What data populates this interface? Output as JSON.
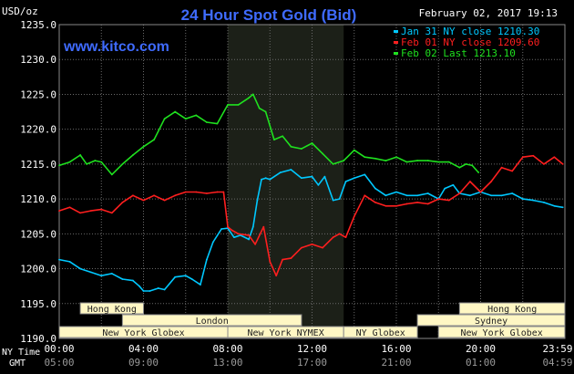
{
  "header": {
    "unit": "USD/oz",
    "title": "24 Hour Spot Gold (Bid)",
    "timestamp": "February 02, 2017 19:13",
    "website": "www.kitco.com"
  },
  "axis_labels": {
    "ny_time": "NY Time",
    "gmt": "GMT"
  },
  "colors": {
    "background": "#000000",
    "grid": "#6a6a6a",
    "axis_text": "#ffffff",
    "title": "#3f6bff",
    "session_fill": "#fff7c4",
    "session_border": "#8a8a8a",
    "shade": "#1c2018"
  },
  "sessions": [
    {
      "label": "Hong Kong",
      "start": 1.0,
      "end": 4.0,
      "row": 1
    },
    {
      "label": "Hong Kong",
      "start": 19.0,
      "end": 24.0,
      "row": 1
    },
    {
      "label": "London",
      "start": 3.0,
      "end": 11.5,
      "row": 2
    },
    {
      "label": "Sydney",
      "start": 17.0,
      "end": 24.0,
      "row": 2
    },
    {
      "label": "New York Globex",
      "start": 0.0,
      "end": 8.0,
      "row": 3
    },
    {
      "label": "New York NYMEX",
      "start": 8.0,
      "end": 13.5,
      "row": 3
    },
    {
      "label": "NY Globex",
      "start": 13.5,
      "end": 17.0,
      "row": 3
    },
    {
      "label": "New York Globex",
      "start": 18.0,
      "end": 24.0,
      "row": 3
    }
  ],
  "chart_data": {
    "type": "line",
    "ylabel": "USD/oz",
    "ylim": [
      1190,
      1235
    ],
    "yticks": [
      "1190.0",
      "1195.0",
      "1200.0",
      "1205.0",
      "1210.0",
      "1215.0",
      "1220.0",
      "1225.0",
      "1230.0",
      "1235.0"
    ],
    "xlim": [
      0,
      24
    ],
    "xticks_ny": [
      "00:00",
      "04:00",
      "08:00",
      "12:00",
      "16:00",
      "20:00",
      "23:59"
    ],
    "xticks_gmt": [
      "05:00",
      "09:00",
      "13:00",
      "17:00",
      "21:00",
      "01:00",
      "04:59"
    ],
    "shaded_range": [
      8.0,
      13.5
    ],
    "grid": true,
    "legend_position": "top-right",
    "series": [
      {
        "name": "Jan 31 NY close 1210.30",
        "color": "#00c8ff",
        "x": [
          0.0,
          0.5,
          1.0,
          1.5,
          2.0,
          2.5,
          3.0,
          3.5,
          3.8,
          4.0,
          4.3,
          4.7,
          5.0,
          5.5,
          6.0,
          6.3,
          6.7,
          7.0,
          7.3,
          7.7,
          8.0,
          8.3,
          8.6,
          9.0,
          9.2,
          9.4,
          9.6,
          9.8,
          10.0,
          10.5,
          11.0,
          11.5,
          12.0,
          12.3,
          12.6,
          13.0,
          13.3,
          13.6,
          14.0,
          14.5,
          15.0,
          15.5,
          16.0,
          16.5,
          17.0,
          17.5,
          18.0,
          18.3,
          18.7,
          19.0,
          19.5,
          20.0,
          20.5,
          21.0,
          21.5,
          22.0,
          22.5,
          23.0,
          23.5,
          23.9
        ],
        "y": [
          1201.3,
          1201.0,
          1200.0,
          1199.5,
          1199.0,
          1199.3,
          1198.5,
          1198.3,
          1197.5,
          1196.8,
          1196.8,
          1197.2,
          1197.0,
          1198.8,
          1199.0,
          1198.5,
          1197.7,
          1201.3,
          1203.8,
          1205.7,
          1205.8,
          1204.5,
          1204.8,
          1204.2,
          1206.0,
          1209.8,
          1212.8,
          1213.0,
          1212.8,
          1213.8,
          1214.2,
          1213.0,
          1213.2,
          1212.0,
          1213.2,
          1209.8,
          1210.0,
          1212.5,
          1213.0,
          1213.5,
          1211.5,
          1210.5,
          1211.0,
          1210.5,
          1210.5,
          1210.8,
          1210.0,
          1211.5,
          1212.0,
          1210.8,
          1210.5,
          1211.0,
          1210.5,
          1210.5,
          1210.8,
          1210.0,
          1209.8,
          1209.5,
          1209.0,
          1208.8
        ]
      },
      {
        "name": "Feb 01 NY close 1209.60",
        "color": "#ff1f1f",
        "x": [
          0.0,
          0.5,
          1.0,
          1.5,
          2.0,
          2.5,
          3.0,
          3.5,
          4.0,
          4.5,
          5.0,
          5.5,
          6.0,
          6.5,
          7.0,
          7.5,
          7.8,
          8.0,
          8.2,
          8.5,
          9.0,
          9.3,
          9.7,
          10.0,
          10.3,
          10.6,
          11.0,
          11.5,
          12.0,
          12.5,
          13.0,
          13.3,
          13.6,
          14.0,
          14.5,
          15.0,
          15.5,
          16.0,
          16.5,
          17.0,
          17.5,
          18.0,
          18.5,
          19.0,
          19.5,
          20.0,
          20.5,
          21.0,
          21.5,
          22.0,
          22.5,
          23.0,
          23.5,
          23.9
        ],
        "y": [
          1208.3,
          1208.8,
          1208.0,
          1208.3,
          1208.5,
          1208.0,
          1209.5,
          1210.5,
          1209.8,
          1210.5,
          1209.8,
          1210.5,
          1211.0,
          1211.0,
          1210.8,
          1211.0,
          1211.0,
          1206.0,
          1205.5,
          1205.0,
          1204.8,
          1203.5,
          1206.0,
          1201.0,
          1199.0,
          1201.3,
          1201.5,
          1203.0,
          1203.5,
          1203.0,
          1204.5,
          1205.0,
          1204.5,
          1207.5,
          1210.5,
          1209.5,
          1209.0,
          1209.0,
          1209.3,
          1209.5,
          1209.3,
          1210.0,
          1209.8,
          1210.8,
          1212.5,
          1211.0,
          1212.5,
          1214.5,
          1214.0,
          1216.0,
          1216.2,
          1215.0,
          1216.0,
          1215.0
        ]
      },
      {
        "name": "Feb 02 Last 1213.10",
        "color": "#1fe11f",
        "x": [
          0.0,
          0.5,
          1.0,
          1.3,
          1.7,
          2.0,
          2.5,
          3.0,
          3.5,
          4.0,
          4.5,
          5.0,
          5.5,
          6.0,
          6.5,
          7.0,
          7.5,
          8.0,
          8.5,
          9.0,
          9.2,
          9.5,
          9.8,
          10.2,
          10.6,
          11.0,
          11.5,
          12.0,
          12.5,
          13.0,
          13.5,
          14.0,
          14.5,
          15.0,
          15.5,
          16.0,
          16.5,
          17.0,
          17.5,
          18.0,
          18.5,
          19.0,
          19.3,
          19.6,
          19.9
        ],
        "y": [
          1214.8,
          1215.3,
          1216.3,
          1215.0,
          1215.5,
          1215.3,
          1213.5,
          1215.0,
          1216.3,
          1217.5,
          1218.5,
          1221.5,
          1222.5,
          1221.5,
          1222.0,
          1221.0,
          1220.8,
          1223.5,
          1223.5,
          1224.5,
          1225.0,
          1223.0,
          1222.5,
          1218.5,
          1219.0,
          1217.5,
          1217.2,
          1218.0,
          1216.5,
          1215.0,
          1215.5,
          1217.0,
          1216.0,
          1215.8,
          1215.5,
          1216.0,
          1215.3,
          1215.5,
          1215.5,
          1215.3,
          1215.3,
          1214.5,
          1215.0,
          1214.8,
          1213.8
        ]
      }
    ]
  }
}
